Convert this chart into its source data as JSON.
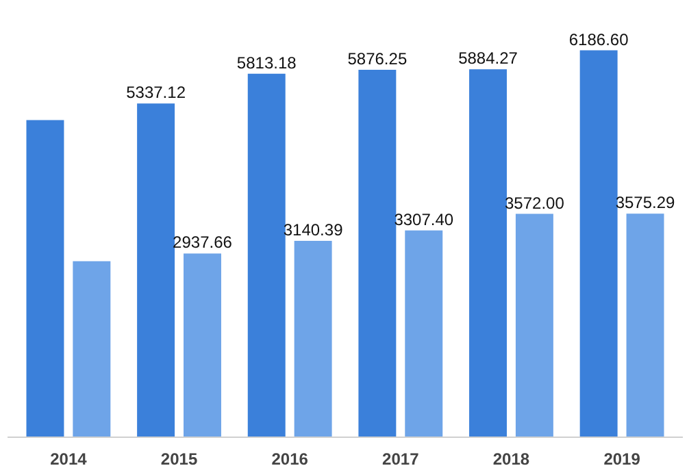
{
  "chart_data": {
    "type": "bar",
    "categories": [
      "2014",
      "2015",
      "2016",
      "2017",
      "2018",
      "2019"
    ],
    "series": [
      {
        "color": "#3b80da",
        "values": [
          5070,
          5337.12,
          5813.18,
          5876.25,
          5884.27,
          6186.6
        ],
        "value_labels": [
          null,
          "5337.12",
          "5813.18",
          "5876.25",
          "5884.27",
          "6186.60"
        ]
      },
      {
        "color": "#6ea4e8",
        "values": [
          2815.47,
          2937.66,
          3140.39,
          3307.4,
          3572.0,
          3575.29
        ],
        "value_labels": [
          null,
          "2937.66",
          "3140.39",
          "3307.40",
          "3572.00",
          "3575.29"
        ]
      }
    ],
    "grid": false
  }
}
